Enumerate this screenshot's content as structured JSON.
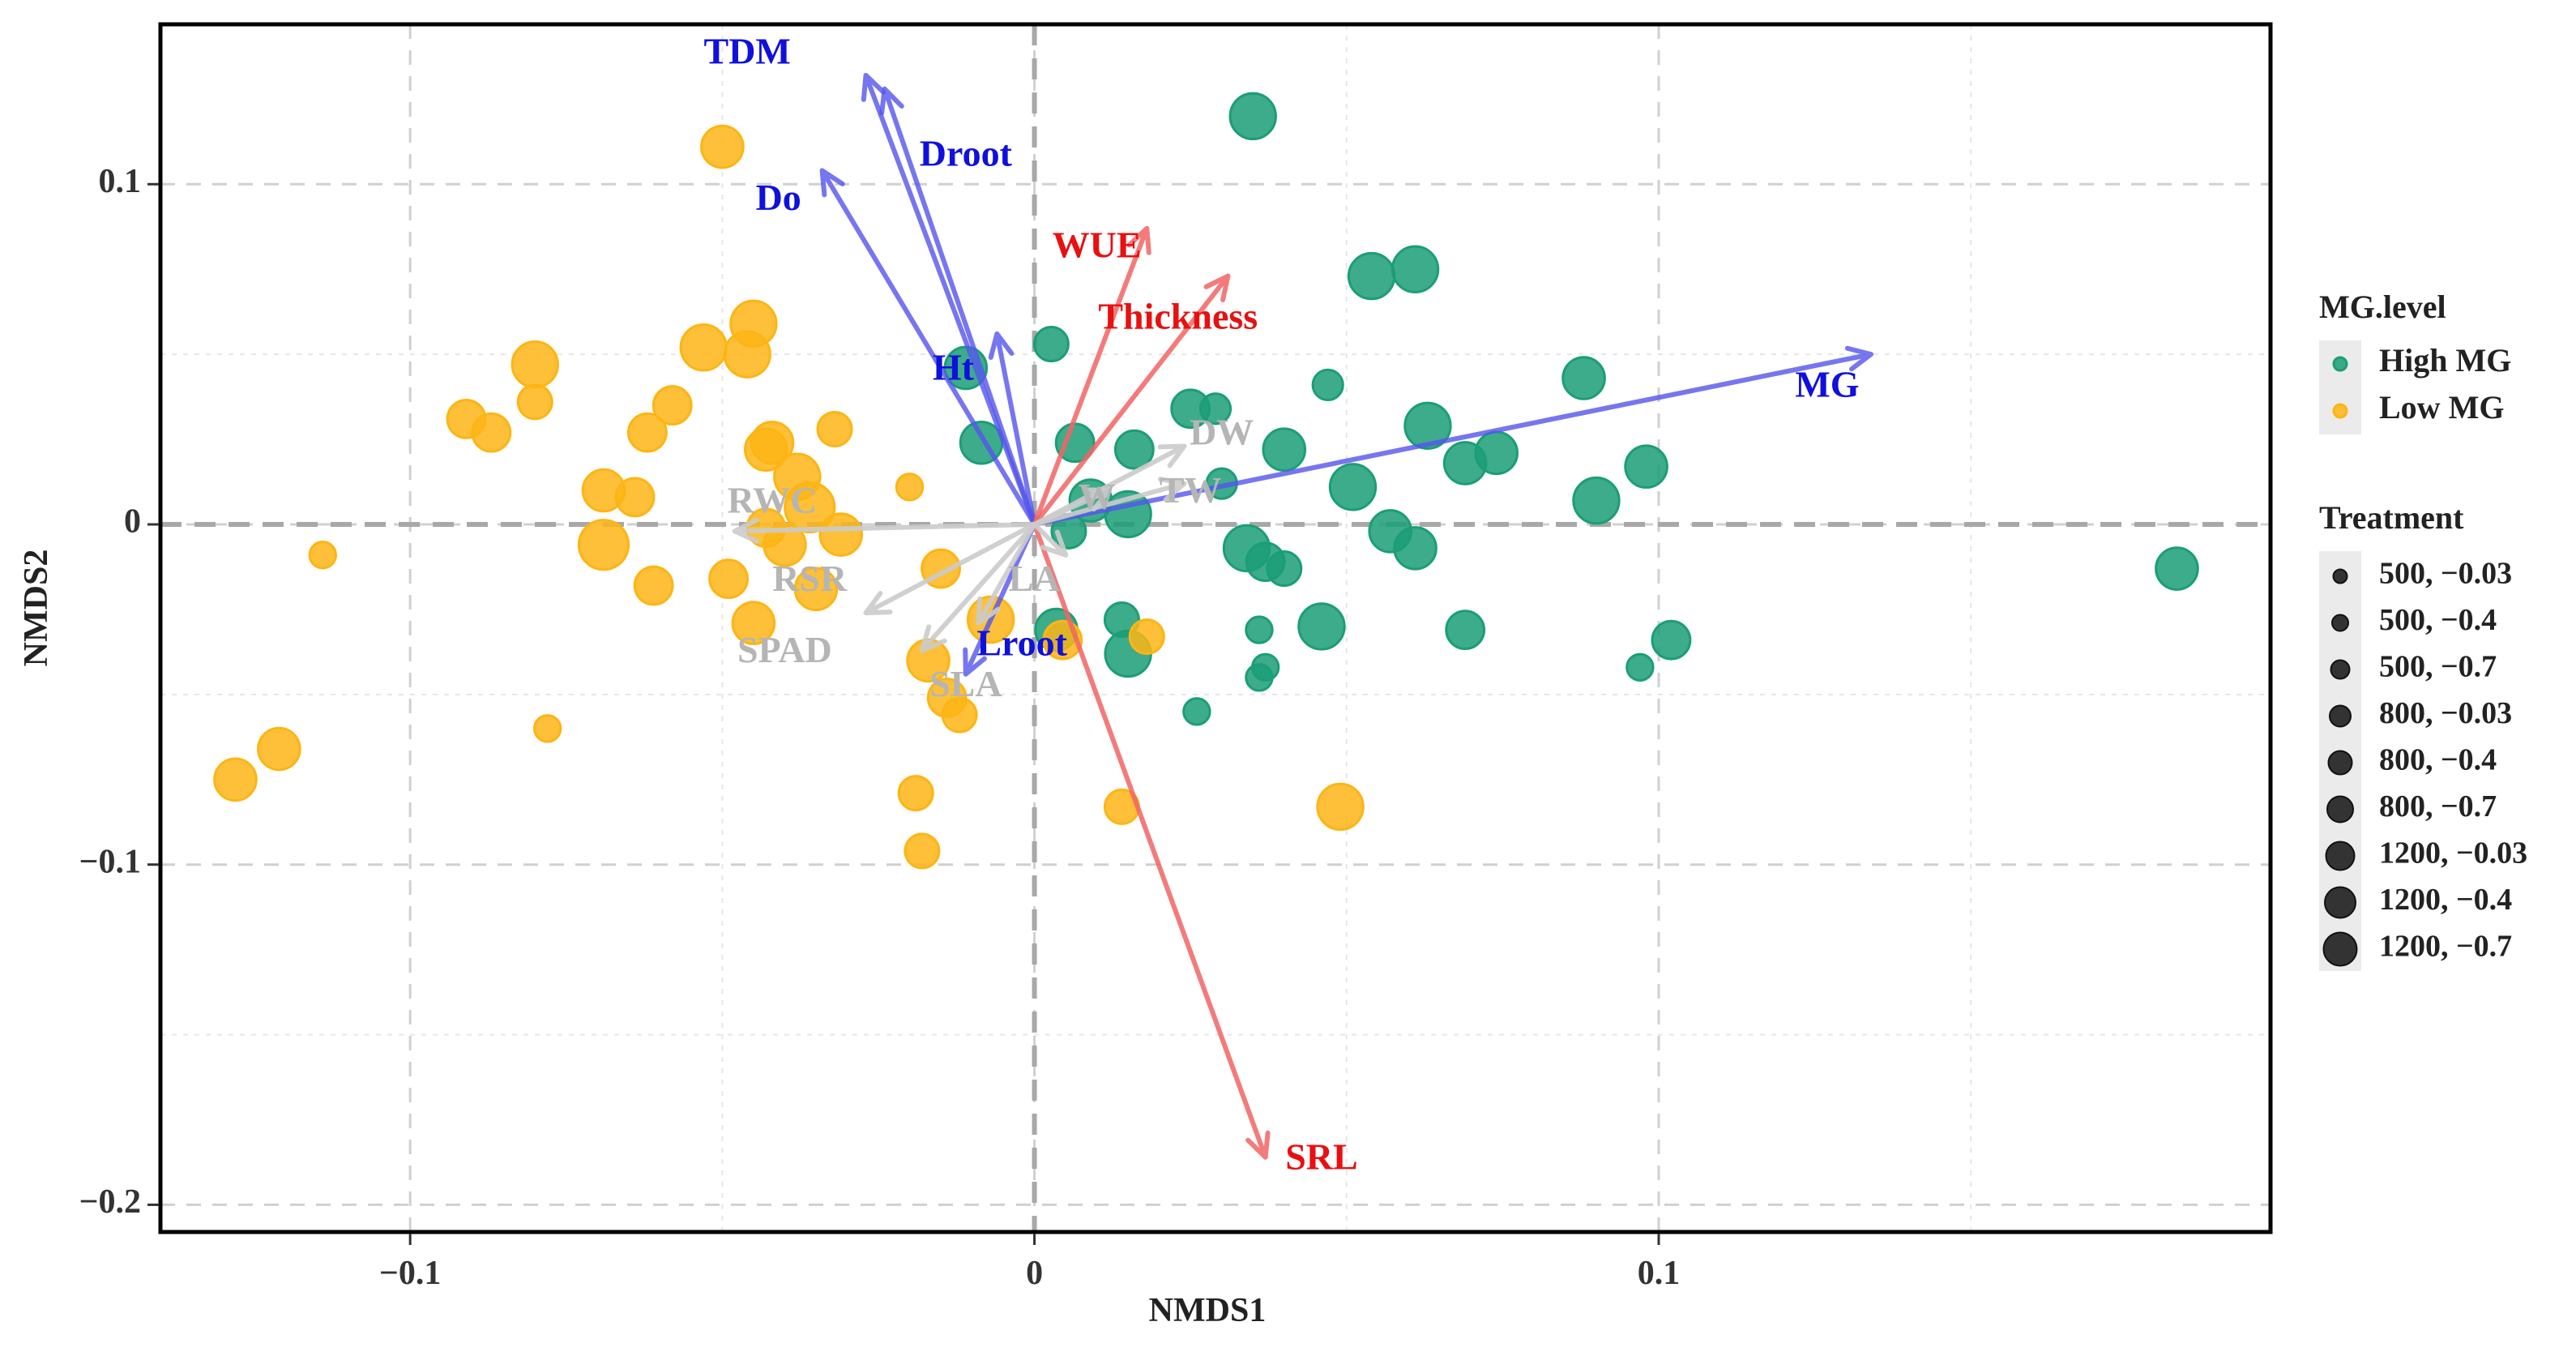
{
  "chart_data": {
    "type": "scatter",
    "title": "",
    "xlabel": "NMDS1",
    "ylabel": "NMDS2",
    "xlim": [
      -0.14,
      0.198
    ],
    "ylim": [
      -0.208,
      0.147
    ],
    "grid": true,
    "x_ticks": [
      {
        "value": -0.1,
        "label": "−0.1"
      },
      {
        "value": 0,
        "label": "0"
      },
      {
        "value": 0.1,
        "label": "0.1"
      }
    ],
    "y_ticks": [
      {
        "value": 0.1,
        "label": "0.1"
      },
      {
        "value": 0,
        "label": "0"
      },
      {
        "value": -0.1,
        "label": "−0.1"
      },
      {
        "value": -0.2,
        "label": "−0.2"
      }
    ],
    "minor_x": [
      -0.05,
      0.05,
      0.15
    ],
    "minor_y": [
      0.05,
      -0.05,
      -0.15
    ],
    "colors": {
      "high": "#1b9e77",
      "low": "#fdb515",
      "blue": "#5555ee",
      "blue_text": "#1010dd",
      "red": "#f26565",
      "red_text": "#e81010",
      "grey": "#cccccc",
      "grey_text": "#b5b5b5",
      "legend_bg": "#ebebeb"
    },
    "legend": {
      "color_title": "MG.level",
      "color_items": [
        {
          "label": "High MG",
          "group": "high"
        },
        {
          "label": "Low MG",
          "group": "low"
        }
      ],
      "size_title": "Treatment",
      "size_items": [
        {
          "label": "500, −0.03",
          "size": 1
        },
        {
          "label": "500, −0.4",
          "size": 2
        },
        {
          "label": "500, −0.7",
          "size": 3
        },
        {
          "label": "800, −0.03",
          "size": 4
        },
        {
          "label": "800, −0.4",
          "size": 5
        },
        {
          "label": "800, −0.7",
          "size": 6
        },
        {
          "label": "1200, −0.03",
          "size": 7
        },
        {
          "label": "1200, −0.4",
          "size": 8
        },
        {
          "label": "1200, −0.7",
          "size": 9
        }
      ]
    },
    "series": [
      {
        "name": "High MG",
        "group": "high",
        "points": [
          [
            0.035,
            0.12,
            8
          ],
          [
            0.054,
            0.073,
            8
          ],
          [
            0.061,
            0.075,
            8
          ],
          [
            0.047,
            0.041,
            4
          ],
          [
            0.088,
            0.043,
            7
          ],
          [
            0.0027,
            0.053,
            5
          ],
          [
            -0.011,
            0.046,
            7
          ],
          [
            -0.0085,
            0.024,
            7
          ],
          [
            0.0065,
            0.024,
            6
          ],
          [
            0.025,
            0.034,
            6
          ],
          [
            0.029,
            0.034,
            4
          ],
          [
            0.016,
            0.022,
            6
          ],
          [
            0.04,
            0.022,
            7
          ],
          [
            0.063,
            0.029,
            8
          ],
          [
            0.069,
            0.018,
            7
          ],
          [
            0.074,
            0.021,
            7
          ],
          [
            0.098,
            0.017,
            7
          ],
          [
            0.09,
            0.007,
            8
          ],
          [
            0.051,
            0.011,
            8
          ],
          [
            0.03,
            0.012,
            4
          ],
          [
            0.015,
            0.003,
            8
          ],
          [
            0.009,
            0.007,
            7
          ],
          [
            0.0055,
            -0.002,
            5
          ],
          [
            0.057,
            -0.002,
            7
          ],
          [
            0.061,
            -0.007,
            7
          ],
          [
            0.034,
            -0.007,
            8
          ],
          [
            0.037,
            -0.011,
            6
          ],
          [
            0.04,
            -0.013,
            5
          ],
          [
            0.0035,
            -0.031,
            7
          ],
          [
            0.046,
            -0.03,
            8
          ],
          [
            0.069,
            -0.031,
            6
          ],
          [
            0.014,
            -0.028,
            5
          ],
          [
            0.036,
            -0.031,
            3
          ],
          [
            0.102,
            -0.034,
            6
          ],
          [
            0.015,
            -0.038,
            8
          ],
          [
            0.037,
            -0.042,
            3
          ],
          [
            0.036,
            -0.045,
            3
          ],
          [
            0.097,
            -0.042,
            3
          ],
          [
            0.026,
            -0.055,
            3
          ],
          [
            0.183,
            -0.013,
            7
          ]
        ]
      },
      {
        "name": "Low MG",
        "group": "low",
        "points": [
          [
            -0.05,
            0.111,
            7
          ],
          [
            -0.045,
            0.059,
            8
          ],
          [
            -0.053,
            0.052,
            8
          ],
          [
            -0.046,
            0.05,
            8
          ],
          [
            -0.08,
            0.047,
            8
          ],
          [
            -0.091,
            0.031,
            6
          ],
          [
            -0.08,
            0.036,
            5
          ],
          [
            -0.087,
            0.027,
            6
          ],
          [
            -0.058,
            0.035,
            6
          ],
          [
            -0.062,
            0.027,
            6
          ],
          [
            -0.042,
            0.024,
            7
          ],
          [
            -0.043,
            0.022,
            7
          ],
          [
            -0.032,
            0.028,
            5
          ],
          [
            -0.038,
            0.014,
            8
          ],
          [
            -0.069,
            0.01,
            7
          ],
          [
            -0.064,
            0.008,
            6
          ],
          [
            -0.036,
            0.005,
            9
          ],
          [
            -0.02,
            0.011,
            3
          ],
          [
            -0.069,
            -0.006,
            9
          ],
          [
            -0.061,
            -0.018,
            6
          ],
          [
            -0.043,
            -0.001,
            6
          ],
          [
            -0.04,
            -0.006,
            7
          ],
          [
            -0.031,
            -0.003,
            7
          ],
          [
            -0.049,
            -0.016,
            6
          ],
          [
            -0.035,
            -0.019,
            7
          ],
          [
            -0.015,
            -0.013,
            6
          ],
          [
            -0.114,
            -0.009,
            3
          ],
          [
            -0.045,
            -0.029,
            7
          ],
          [
            -0.007,
            -0.028,
            8
          ],
          [
            0.0045,
            -0.034,
            6
          ],
          [
            0.018,
            -0.033,
            5
          ],
          [
            -0.017,
            -0.04,
            7
          ],
          [
            -0.014,
            -0.051,
            6
          ],
          [
            -0.012,
            -0.056,
            5
          ],
          [
            -0.078,
            -0.06,
            3
          ],
          [
            -0.121,
            -0.066,
            7
          ],
          [
            -0.128,
            -0.075,
            7
          ],
          [
            -0.019,
            -0.079,
            5
          ],
          [
            -0.018,
            -0.096,
            5
          ],
          [
            0.014,
            -0.083,
            5
          ],
          [
            0.049,
            -0.083,
            8
          ]
        ]
      }
    ],
    "arrows": [
      {
        "label": "TDM",
        "x": -0.027,
        "y": 0.132,
        "color": "blue",
        "label_x": -0.046,
        "label_y": 0.138
      },
      {
        "label": "Droot",
        "x": -0.024,
        "y": 0.128,
        "color": "blue",
        "label_x": -0.011,
        "label_y": 0.108
      },
      {
        "label": "Do",
        "x": -0.034,
        "y": 0.104,
        "color": "blue",
        "label_x": -0.041,
        "label_y": 0.095
      },
      {
        "label": "Ht",
        "x": -0.006,
        "y": 0.056,
        "color": "blue",
        "label_x": -0.013,
        "label_y": 0.045
      },
      {
        "label": "MG",
        "x": 0.134,
        "y": 0.05,
        "color": "blue",
        "label_x": 0.127,
        "label_y": 0.04
      },
      {
        "label": "Lroot",
        "x": -0.011,
        "y": -0.044,
        "color": "blue",
        "label_x": -0.002,
        "label_y": -0.036
      },
      {
        "label": "WUE",
        "x": 0.018,
        "y": 0.087,
        "color": "red",
        "label_x": 0.01,
        "label_y": 0.081
      },
      {
        "label": "Thickness",
        "x": 0.031,
        "y": 0.073,
        "color": "red",
        "label_x": 0.023,
        "label_y": 0.06
      },
      {
        "label": "SRL",
        "x": 0.037,
        "y": -0.186,
        "color": "red",
        "label_x": 0.046,
        "label_y": -0.187
      },
      {
        "label": "DW",
        "x": 0.024,
        "y": 0.023,
        "color": "grey",
        "label_x": 0.03,
        "label_y": 0.026
      },
      {
        "label": "TW",
        "x": 0.024,
        "y": 0.012,
        "color": "grey",
        "label_x": 0.025,
        "label_y": 0.009
      },
      {
        "label": "W",
        "x": 0.012,
        "y": 0.01,
        "color": "grey",
        "label_x": 0.01,
        "label_y": 0.007
      },
      {
        "label": "RWC",
        "x": -0.048,
        "y": -0.002,
        "color": "grey",
        "label_x": -0.042,
        "label_y": 0.006
      },
      {
        "label": "RSR",
        "x": -0.027,
        "y": -0.026,
        "color": "grey",
        "label_x": -0.036,
        "label_y": -0.017
      },
      {
        "label": "LA",
        "x": 0.005,
        "y": -0.009,
        "color": "grey",
        "label_x": 0.0,
        "label_y": -0.017
      },
      {
        "label": "SPAD",
        "x": -0.018,
        "y": -0.037,
        "color": "grey",
        "label_x": -0.04,
        "label_y": -0.038
      },
      {
        "label": "SLA",
        "x": -0.009,
        "y": -0.029,
        "color": "grey",
        "label_x": -0.011,
        "label_y": -0.048
      }
    ]
  }
}
